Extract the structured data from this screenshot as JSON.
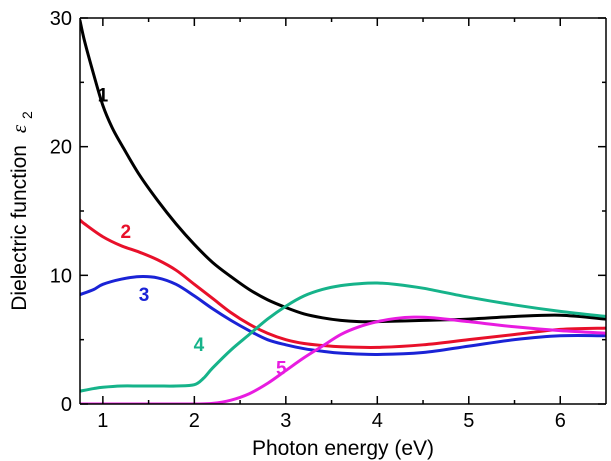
{
  "chart_data": {
    "type": "line",
    "title": "",
    "xlabel": "Photon energy (eV)",
    "ylabel": "Dielectric function",
    "ylabel_symbol": "ε",
    "ylabel_subscript": "2",
    "xlim": [
      0.75,
      6.5
    ],
    "ylim": [
      0,
      30
    ],
    "xticks": [
      1,
      2,
      3,
      4,
      5,
      6
    ],
    "yticks": [
      0,
      10,
      20,
      30
    ],
    "grid": false,
    "legend": "none",
    "series": [
      {
        "name": "1",
        "color": "#000000",
        "points": [
          [
            0.75,
            29.8
          ],
          [
            0.8,
            28.2
          ],
          [
            0.9,
            25.6
          ],
          [
            1.0,
            23.2
          ],
          [
            1.1,
            21.5
          ],
          [
            1.2,
            20.2
          ],
          [
            1.4,
            17.8
          ],
          [
            1.6,
            15.8
          ],
          [
            1.8,
            14.0
          ],
          [
            2.0,
            12.4
          ],
          [
            2.2,
            11.0
          ],
          [
            2.4,
            9.9
          ],
          [
            2.6,
            8.9
          ],
          [
            2.8,
            8.1
          ],
          [
            3.0,
            7.5
          ],
          [
            3.2,
            7.0
          ],
          [
            3.4,
            6.7
          ],
          [
            3.6,
            6.5
          ],
          [
            3.8,
            6.4
          ],
          [
            4.0,
            6.4
          ],
          [
            4.5,
            6.5
          ],
          [
            5.0,
            6.6
          ],
          [
            5.5,
            6.8
          ],
          [
            6.0,
            6.9
          ],
          [
            6.5,
            6.6
          ]
        ]
      },
      {
        "name": "2",
        "color": "#e8102a",
        "points": [
          [
            0.75,
            14.3
          ],
          [
            0.8,
            14.0
          ],
          [
            1.0,
            13.0
          ],
          [
            1.2,
            12.3
          ],
          [
            1.4,
            11.8
          ],
          [
            1.6,
            11.2
          ],
          [
            1.8,
            10.4
          ],
          [
            2.0,
            9.3
          ],
          [
            2.2,
            8.2
          ],
          [
            2.4,
            7.1
          ],
          [
            2.6,
            6.2
          ],
          [
            2.8,
            5.5
          ],
          [
            3.0,
            5.0
          ],
          [
            3.2,
            4.7
          ],
          [
            3.4,
            4.55
          ],
          [
            3.6,
            4.45
          ],
          [
            4.0,
            4.4
          ],
          [
            4.5,
            4.6
          ],
          [
            5.0,
            5.0
          ],
          [
            5.5,
            5.4
          ],
          [
            6.0,
            5.8
          ],
          [
            6.5,
            5.9
          ]
        ]
      },
      {
        "name": "3",
        "color": "#1a23d6",
        "points": [
          [
            0.75,
            8.5
          ],
          [
            0.9,
            8.9
          ],
          [
            1.0,
            9.3
          ],
          [
            1.2,
            9.7
          ],
          [
            1.4,
            9.9
          ],
          [
            1.6,
            9.8
          ],
          [
            1.8,
            9.3
          ],
          [
            2.0,
            8.4
          ],
          [
            2.2,
            7.4
          ],
          [
            2.4,
            6.5
          ],
          [
            2.6,
            5.7
          ],
          [
            2.8,
            5.0
          ],
          [
            3.0,
            4.6
          ],
          [
            3.2,
            4.3
          ],
          [
            3.4,
            4.1
          ],
          [
            3.6,
            3.95
          ],
          [
            4.0,
            3.85
          ],
          [
            4.5,
            4.0
          ],
          [
            5.0,
            4.5
          ],
          [
            5.5,
            5.0
          ],
          [
            6.0,
            5.3
          ],
          [
            6.5,
            5.3
          ]
        ]
      },
      {
        "name": "4",
        "color": "#16b38a",
        "points": [
          [
            0.75,
            1.0
          ],
          [
            0.9,
            1.2
          ],
          [
            1.0,
            1.3
          ],
          [
            1.2,
            1.4
          ],
          [
            1.4,
            1.4
          ],
          [
            1.6,
            1.4
          ],
          [
            1.8,
            1.4
          ],
          [
            2.0,
            1.5
          ],
          [
            2.1,
            2.0
          ],
          [
            2.2,
            2.8
          ],
          [
            2.4,
            4.2
          ],
          [
            2.6,
            5.4
          ],
          [
            2.8,
            6.6
          ],
          [
            3.0,
            7.6
          ],
          [
            3.2,
            8.4
          ],
          [
            3.4,
            8.9
          ],
          [
            3.6,
            9.2
          ],
          [
            3.8,
            9.35
          ],
          [
            4.0,
            9.4
          ],
          [
            4.2,
            9.3
          ],
          [
            4.5,
            9.0
          ],
          [
            5.0,
            8.3
          ],
          [
            5.5,
            7.7
          ],
          [
            6.0,
            7.2
          ],
          [
            6.5,
            6.8
          ]
        ]
      },
      {
        "name": "5",
        "color": "#e81ce0",
        "points": [
          [
            0.75,
            0.0
          ],
          [
            1.5,
            0.0
          ],
          [
            2.0,
            0.0
          ],
          [
            2.2,
            0.05
          ],
          [
            2.4,
            0.3
          ],
          [
            2.6,
            0.8
          ],
          [
            2.8,
            1.6
          ],
          [
            3.0,
            2.6
          ],
          [
            3.2,
            3.6
          ],
          [
            3.4,
            4.5
          ],
          [
            3.6,
            5.4
          ],
          [
            3.8,
            6.0
          ],
          [
            4.0,
            6.4
          ],
          [
            4.2,
            6.65
          ],
          [
            4.4,
            6.75
          ],
          [
            4.6,
            6.7
          ],
          [
            5.0,
            6.4
          ],
          [
            5.5,
            6.0
          ],
          [
            6.0,
            5.7
          ],
          [
            6.5,
            5.5
          ]
        ]
      }
    ],
    "annotations": [
      {
        "text": "1",
        "x": 1.0,
        "y": 23.5
      },
      {
        "text": "2",
        "x": 1.25,
        "y": 12.9
      },
      {
        "text": "3",
        "x": 1.45,
        "y": 8.0
      },
      {
        "text": "4",
        "x": 2.05,
        "y": 4.1
      },
      {
        "text": "5",
        "x": 2.95,
        "y": 2.3
      }
    ]
  }
}
